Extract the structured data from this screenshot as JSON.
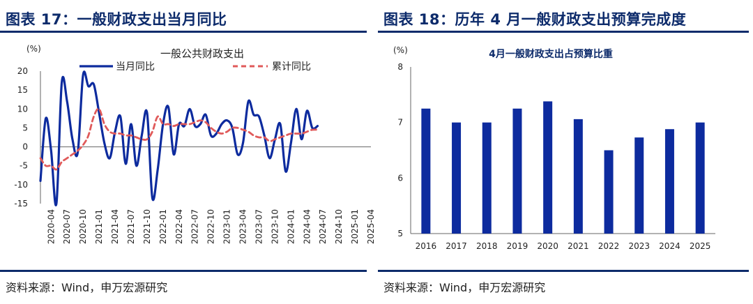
{
  "left": {
    "title": "图表 17：一般财政支出当月同比",
    "source": "资料来源：Wind，申万宏源研究",
    "chart_data": {
      "type": "line",
      "title": "一般公共财政支出",
      "unit": "(%)",
      "ylim": [
        -15,
        20
      ],
      "yticks": [
        -15,
        -10,
        -5,
        0,
        5,
        10,
        15,
        20
      ],
      "xticklabels": [
        "2020-04",
        "2020-07",
        "2020-10",
        "2021-01",
        "2021-04",
        "2021-07",
        "2021-10",
        "2022-01",
        "2022-04",
        "2022-07",
        "2022-10",
        "2023-01",
        "2023-04",
        "2023-07",
        "2023-10",
        "2024-01",
        "2024-04",
        "2024-07",
        "2024-10",
        "2025-01",
        "2025-04"
      ],
      "legend": [
        "当月同比",
        "累计同比"
      ],
      "colors": [
        "#0d2b9e",
        "#e05a5a"
      ],
      "series": [
        {
          "name": "当月同比",
          "values": [
            {
              "x": "2020-02",
              "y": -9
            },
            {
              "x": "2020-03",
              "y": 7.5
            },
            {
              "x": "2020-04",
              "y": -1
            },
            {
              "x": "2020-05",
              "y": -15
            },
            {
              "x": "2020-06",
              "y": 17
            },
            {
              "x": "2020-07",
              "y": 12
            },
            {
              "x": "2020-08",
              "y": 2
            },
            {
              "x": "2020-09",
              "y": -1.5
            },
            {
              "x": "2020-10",
              "y": 19
            },
            {
              "x": "2020-11",
              "y": 16
            },
            {
              "x": "2020-12",
              "y": 16.5
            },
            {
              "x": "2021-01",
              "y": 9
            },
            {
              "x": "2021-02",
              "y": 1
            },
            {
              "x": "2021-03",
              "y": -3
            },
            {
              "x": "2021-04",
              "y": 4
            },
            {
              "x": "2021-05",
              "y": 8
            },
            {
              "x": "2021-06",
              "y": -4.5
            },
            {
              "x": "2021-07",
              "y": 6
            },
            {
              "x": "2021-08",
              "y": -5
            },
            {
              "x": "2021-09",
              "y": 3
            },
            {
              "x": "2021-10",
              "y": 9
            },
            {
              "x": "2021-11",
              "y": -13.5
            },
            {
              "x": "2021-12",
              "y": -6
            },
            {
              "x": "2022-01",
              "y": 6
            },
            {
              "x": "2022-02",
              "y": 10.5
            },
            {
              "x": "2022-03",
              "y": -2
            },
            {
              "x": "2022-04",
              "y": 6
            },
            {
              "x": "2022-05",
              "y": 5.5
            },
            {
              "x": "2022-06",
              "y": 10
            },
            {
              "x": "2022-07",
              "y": 5.5
            },
            {
              "x": "2022-08",
              "y": 6
            },
            {
              "x": "2022-09",
              "y": 8.5
            },
            {
              "x": "2022-10",
              "y": 3
            },
            {
              "x": "2022-11",
              "y": 3.5
            },
            {
              "x": "2022-12",
              "y": 6
            },
            {
              "x": "2023-01",
              "y": 7
            },
            {
              "x": "2023-02",
              "y": 5
            },
            {
              "x": "2023-03",
              "y": -2
            },
            {
              "x": "2023-04",
              "y": 1
            },
            {
              "x": "2023-05",
              "y": 12
            },
            {
              "x": "2023-06",
              "y": 8.5
            },
            {
              "x": "2023-07",
              "y": 8
            },
            {
              "x": "2023-08",
              "y": 3
            },
            {
              "x": "2023-09",
              "y": -3
            },
            {
              "x": "2023-10",
              "y": 2
            },
            {
              "x": "2023-11",
              "y": 6
            },
            {
              "x": "2023-12",
              "y": -6.5
            },
            {
              "x": "2024-01",
              "y": 1
            },
            {
              "x": "2024-02",
              "y": 10
            },
            {
              "x": "2024-03",
              "y": 2
            },
            {
              "x": "2024-04",
              "y": 9.5
            },
            {
              "x": "2024-05",
              "y": 5
            },
            {
              "x": "2024-06",
              "y": 5.5
            }
          ]
        },
        {
          "name": "累计同比",
          "values": [
            {
              "x": "2020-02",
              "y": -3
            },
            {
              "x": "2020-03",
              "y": -5
            },
            {
              "x": "2020-04",
              "y": -5
            },
            {
              "x": "2020-05",
              "y": -6
            },
            {
              "x": "2020-06",
              "y": -4
            },
            {
              "x": "2020-07",
              "y": -3
            },
            {
              "x": "2020-08",
              "y": -2
            },
            {
              "x": "2020-09",
              "y": -1
            },
            {
              "x": "2020-10",
              "y": 0.5
            },
            {
              "x": "2020-11",
              "y": 3
            },
            {
              "x": "2020-12",
              "y": 8
            },
            {
              "x": "2021-01",
              "y": 10
            },
            {
              "x": "2021-02",
              "y": 6
            },
            {
              "x": "2021-03",
              "y": 4
            },
            {
              "x": "2021-04",
              "y": 3.5
            },
            {
              "x": "2021-05",
              "y": 3.5
            },
            {
              "x": "2021-06",
              "y": 3
            },
            {
              "x": "2021-07",
              "y": 3
            },
            {
              "x": "2021-08",
              "y": 2.5
            },
            {
              "x": "2021-09",
              "y": 2
            },
            {
              "x": "2021-10",
              "y": 2
            },
            {
              "x": "2021-11",
              "y": 4
            },
            {
              "x": "2021-12",
              "y": 8
            },
            {
              "x": "2022-01",
              "y": 6
            },
            {
              "x": "2022-02",
              "y": 6
            },
            {
              "x": "2022-03",
              "y": 5.5
            },
            {
              "x": "2022-04",
              "y": 6
            },
            {
              "x": "2022-05",
              "y": 6
            },
            {
              "x": "2022-06",
              "y": 6
            },
            {
              "x": "2022-07",
              "y": 6.5
            },
            {
              "x": "2022-08",
              "y": 7
            },
            {
              "x": "2022-09",
              "y": 6.5
            },
            {
              "x": "2022-10",
              "y": 5
            },
            {
              "x": "2022-11",
              "y": 4
            },
            {
              "x": "2022-12",
              "y": 3.5
            },
            {
              "x": "2023-01",
              "y": 4
            },
            {
              "x": "2023-02",
              "y": 5
            },
            {
              "x": "2023-03",
              "y": 5
            },
            {
              "x": "2023-04",
              "y": 4.5
            },
            {
              "x": "2023-05",
              "y": 4
            },
            {
              "x": "2023-06",
              "y": 3
            },
            {
              "x": "2023-07",
              "y": 2.5
            },
            {
              "x": "2023-08",
              "y": 2.5
            },
            {
              "x": "2023-09",
              "y": 1.5
            },
            {
              "x": "2023-10",
              "y": 2
            },
            {
              "x": "2023-11",
              "y": 2.5
            },
            {
              "x": "2023-12",
              "y": 3
            },
            {
              "x": "2024-01",
              "y": 3.5
            },
            {
              "x": "2024-02",
              "y": 3.5
            },
            {
              "x": "2024-03",
              "y": 3.5
            },
            {
              "x": "2024-04",
              "y": 4
            },
            {
              "x": "2024-05",
              "y": 4.5
            },
            {
              "x": "2024-06",
              "y": 4.5
            }
          ]
        }
      ]
    }
  },
  "right": {
    "title": "图表 18：历年 4 月一般财政支出预算完成度",
    "source": "资料来源：Wind，申万宏源研究",
    "chart_data": {
      "type": "bar",
      "title": "4月一般财政支出占预算比重",
      "unit": "(%)",
      "ylim": [
        5,
        8
      ],
      "yticks": [
        5,
        6,
        7,
        8
      ],
      "categories": [
        "2016",
        "2017",
        "2018",
        "2019",
        "2020",
        "2021",
        "2022",
        "2023",
        "2024",
        "2025"
      ],
      "values": [
        7.25,
        7.0,
        7.0,
        7.25,
        7.38,
        7.06,
        6.5,
        6.73,
        6.88,
        7.0
      ],
      "color": "#0d2b9e"
    }
  }
}
